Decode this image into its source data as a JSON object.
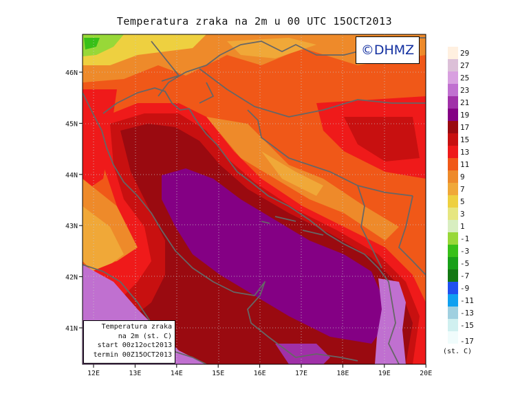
{
  "title": "Temperatura zraka na 2m u 00 UTC 15OCT2013",
  "logo": "©DHMZ",
  "info": {
    "line1": "Temperatura zraka",
    "line2": "na 2m (st. C)",
    "line3": "start 00z12oct2013",
    "line4": "termin 00Z15OCT2013"
  },
  "x_axis": {
    "ticks": [
      "12E",
      "13E",
      "14E",
      "15E",
      "16E",
      "17E",
      "18E",
      "19E",
      "20E"
    ]
  },
  "y_axis": {
    "ticks": [
      "46N",
      "45N",
      "44N",
      "43N",
      "42N",
      "41N"
    ]
  },
  "colorbar": {
    "unit": "(st. C)",
    "bins": [
      {
        "label": "29",
        "color": "#fff0e0"
      },
      {
        "label": "27",
        "color": "#dcc0d8"
      },
      {
        "label": "25",
        "color": "#d8a0e0"
      },
      {
        "label": "23",
        "color": "#c070d0"
      },
      {
        "label": "21",
        "color": "#a030a8"
      },
      {
        "label": "19",
        "color": "#840084"
      },
      {
        "label": "17",
        "color": "#9a0a10"
      },
      {
        "label": "15",
        "color": "#c81010"
      },
      {
        "label": "13",
        "color": "#ef1a1a"
      },
      {
        "label": "11",
        "color": "#f05818"
      },
      {
        "label": "9",
        "color": "#ee8a2a"
      },
      {
        "label": "7",
        "color": "#f0a838"
      },
      {
        "label": "5",
        "color": "#eed040"
      },
      {
        "label": "3",
        "color": "#e6e680"
      },
      {
        "label": "1",
        "color": "#d8eec0"
      },
      {
        "label": "-1",
        "color": "#98d838"
      },
      {
        "label": "-3",
        "color": "#38c018"
      },
      {
        "label": "-5",
        "color": "#18a018"
      },
      {
        "label": "-7",
        "color": "#137813"
      },
      {
        "label": "-9",
        "color": "#2050f0"
      },
      {
        "label": "-11",
        "color": "#10a0f0"
      },
      {
        "label": "-13",
        "color": "#a0d0e0"
      },
      {
        "label": "-15",
        "color": "#d0f0f0"
      },
      {
        "label": "-17",
        "color": "#f0fcfc"
      }
    ]
  }
}
